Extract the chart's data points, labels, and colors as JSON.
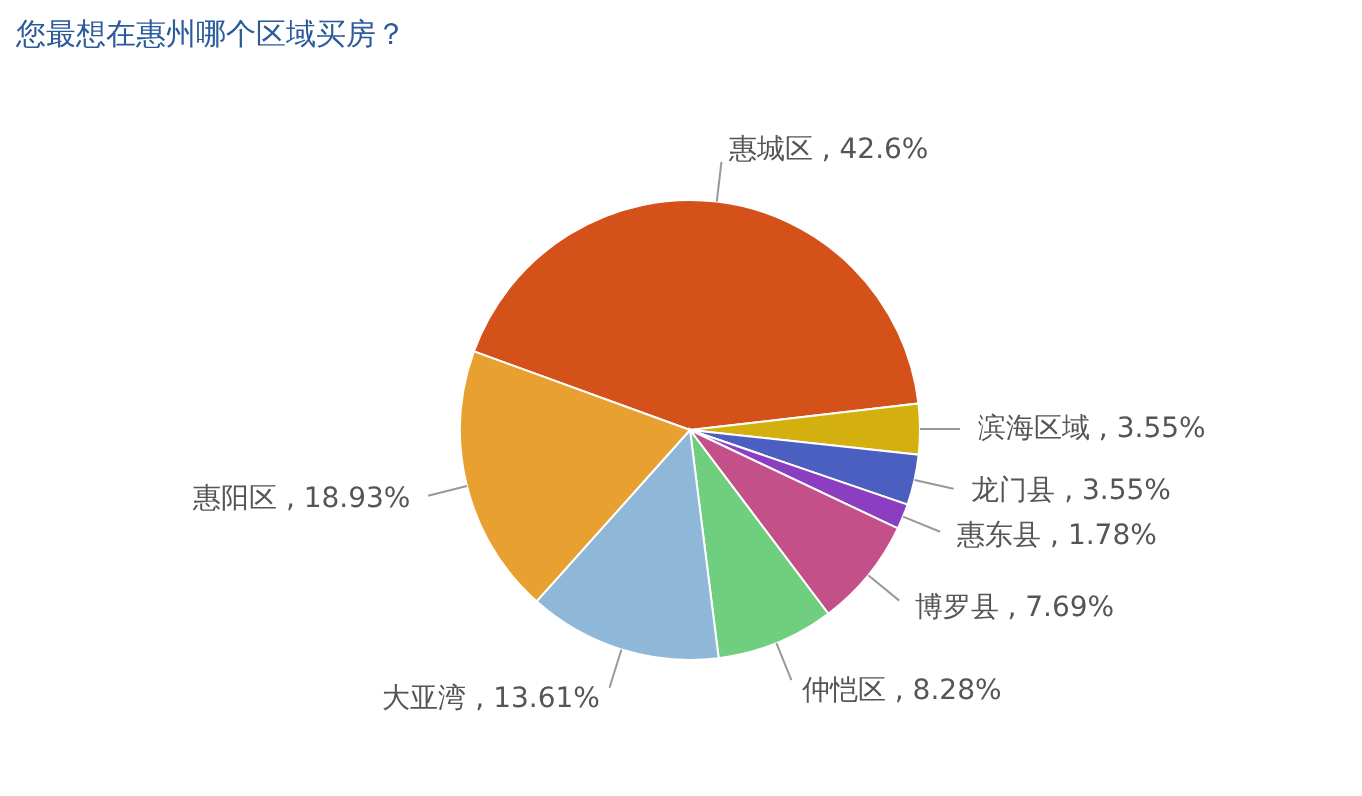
{
  "chart_data": {
    "type": "pie",
    "title": "您最想在惠州哪个区域买房？",
    "categories": [
      "惠城区",
      "滨海区域",
      "龙门县",
      "惠东县",
      "博罗县",
      "仲恺区",
      "大亚湾",
      "惠阳区"
    ],
    "values": [
      42.6,
      3.55,
      3.55,
      1.78,
      7.69,
      8.28,
      13.61,
      18.93
    ],
    "value_labels": [
      ", 42.6%",
      ", 3.55%",
      ", 3.55%",
      ", 1.78%",
      ", 7.69%",
      ", 8.28%",
      ", 13.61%",
      ", 18.93%"
    ],
    "colors": [
      "#d4521a",
      "#d4b00f",
      "#4a5fbf",
      "#8b3fc0",
      "#c4508a",
      "#6fcf7f",
      "#8fb8d8",
      "#e8a030"
    ]
  }
}
